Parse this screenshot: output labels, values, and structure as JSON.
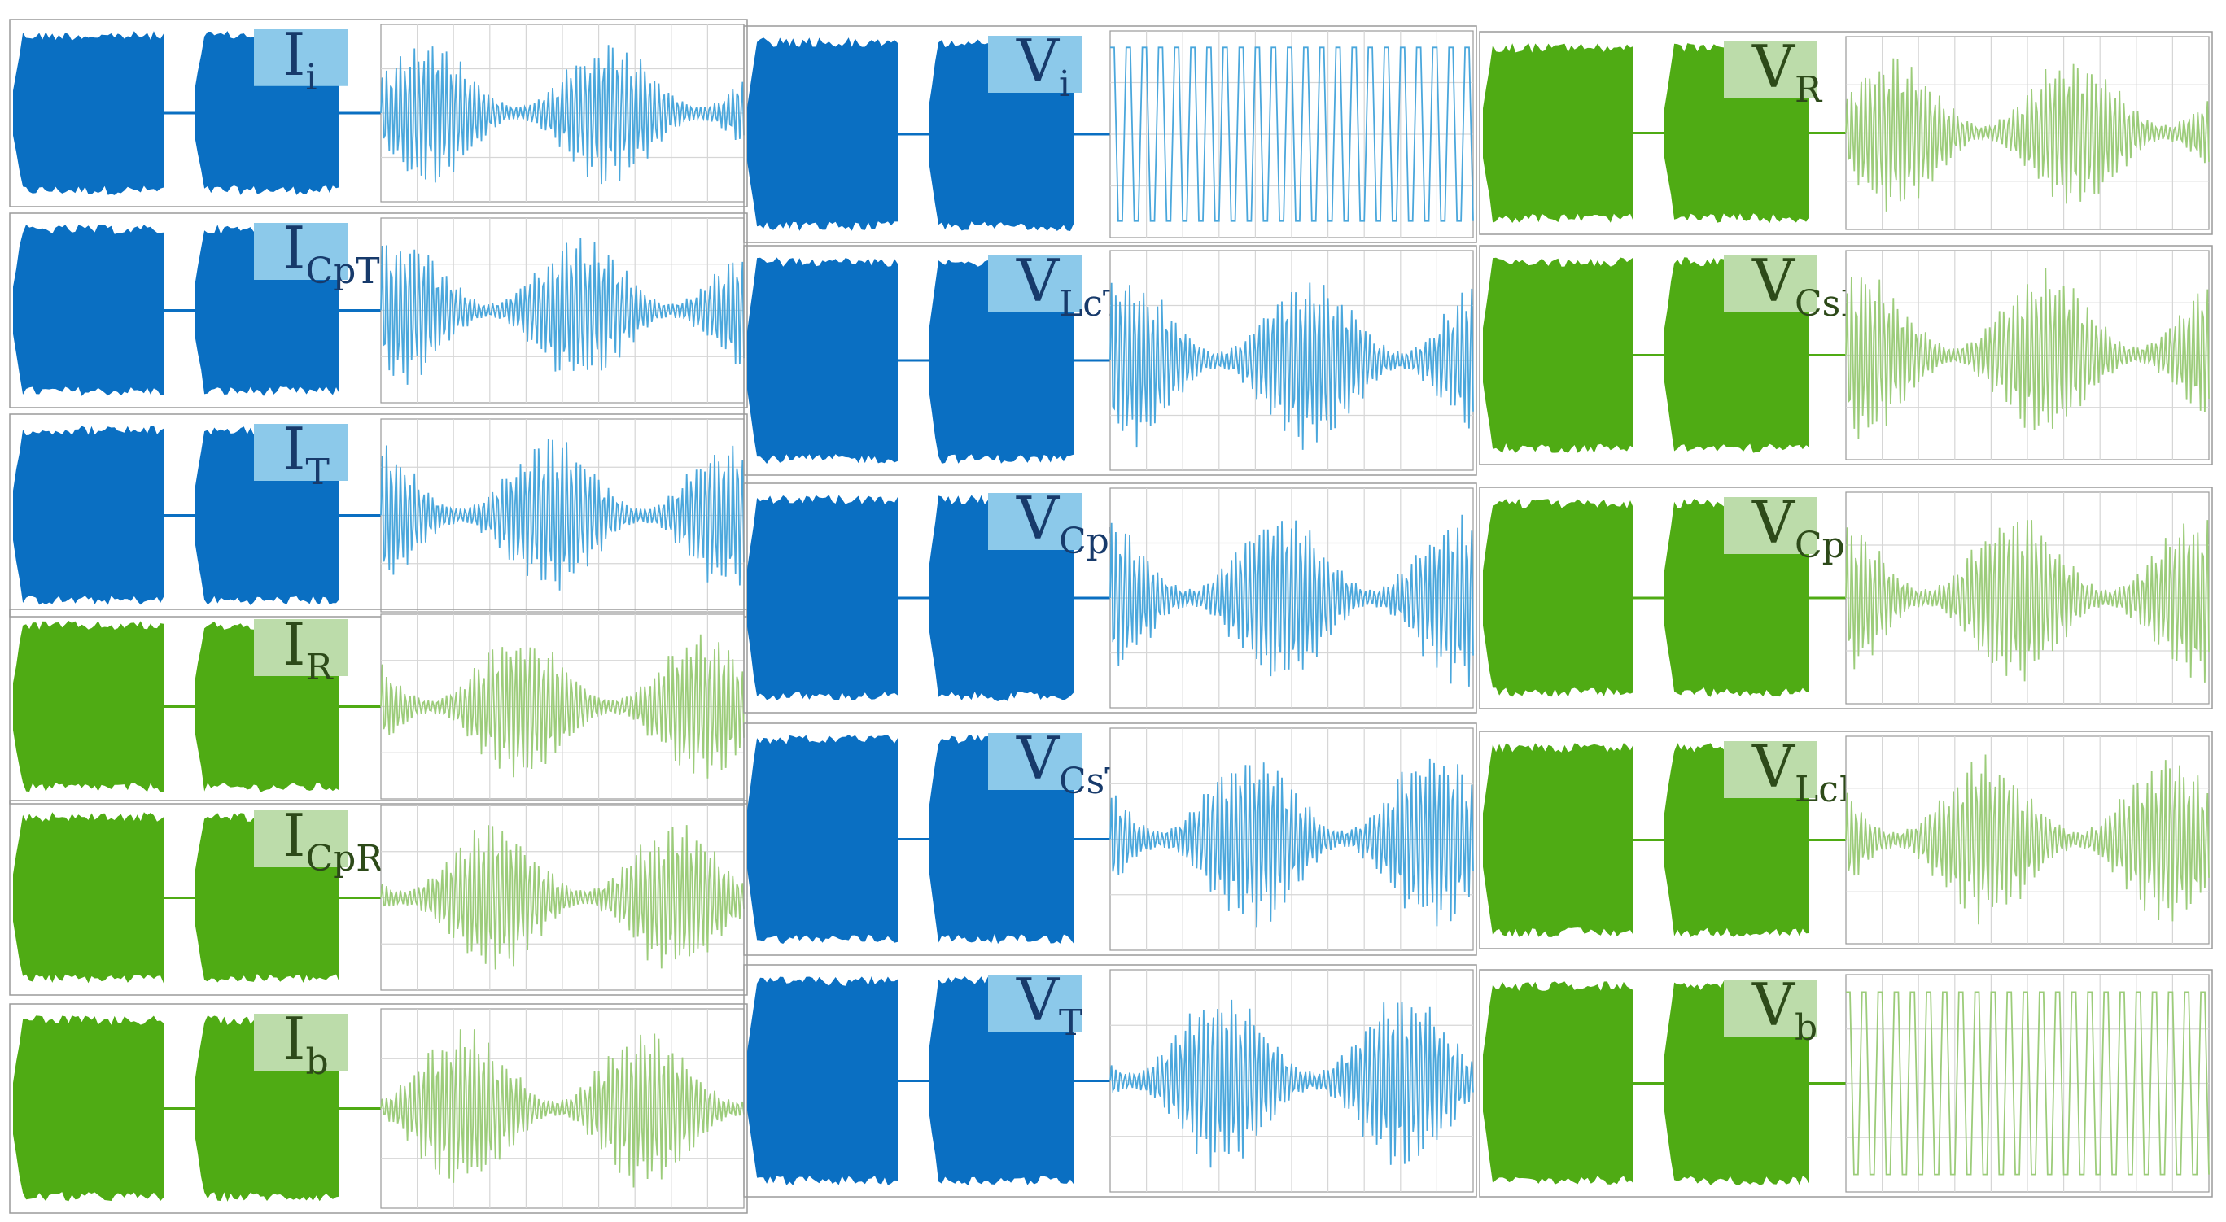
{
  "colors": {
    "blue_env": "#0a6fc2",
    "blue_zoom": "#4aa7dc",
    "blue_box": "#8cc9ea",
    "blue_label": "#173a6b",
    "green_env": "#4fab14",
    "green_zoom": "#9ccc7a",
    "green_box": "#bcdcaa",
    "green_label": "#2d4a19",
    "grid": "#d6d6d6",
    "frame": "#9a9a9a"
  },
  "chart_data": {
    "type": "line",
    "description_note": "",
    "columns": [
      {
        "quantity": "current",
        "panels": [
          {
            "label": "I",
            "sub": "i",
            "side": "transmitter",
            "pattern": "beat"
          },
          {
            "label": "I",
            "sub": "CpT",
            "side": "transmitter",
            "pattern": "beat"
          },
          {
            "label": "I",
            "sub": "T",
            "side": "transmitter",
            "pattern": "beat"
          },
          {
            "label": "I",
            "sub": "R",
            "side": "receiver",
            "pattern": "beat"
          },
          {
            "label": "I",
            "sub": "CpR",
            "side": "receiver",
            "pattern": "beat"
          },
          {
            "label": "I",
            "sub": "b",
            "side": "receiver",
            "pattern": "beat"
          }
        ]
      },
      {
        "quantity": "voltage",
        "panels": [
          {
            "label": "V",
            "sub": "i",
            "side": "transmitter",
            "pattern": "square"
          },
          {
            "label": "V",
            "sub": "LcT",
            "side": "transmitter",
            "pattern": "beat"
          },
          {
            "label": "V",
            "sub": "CpT",
            "side": "transmitter",
            "pattern": "beat"
          },
          {
            "label": "V",
            "sub": "CsT",
            "side": "transmitter",
            "pattern": "beat"
          },
          {
            "label": "V",
            "sub": "T",
            "side": "transmitter",
            "pattern": "beat"
          }
        ]
      },
      {
        "quantity": "voltage",
        "panels": [
          {
            "label": "V",
            "sub": "R",
            "side": "receiver",
            "pattern": "beat"
          },
          {
            "label": "V",
            "sub": "CsR",
            "side": "receiver",
            "pattern": "beat"
          },
          {
            "label": "V",
            "sub": "CpR",
            "side": "receiver",
            "pattern": "beat"
          },
          {
            "label": "V",
            "sub": "LcR",
            "side": "receiver",
            "pattern": "beat"
          },
          {
            "label": "V",
            "sub": "b",
            "side": "receiver",
            "pattern": "square"
          }
        ]
      }
    ]
  }
}
